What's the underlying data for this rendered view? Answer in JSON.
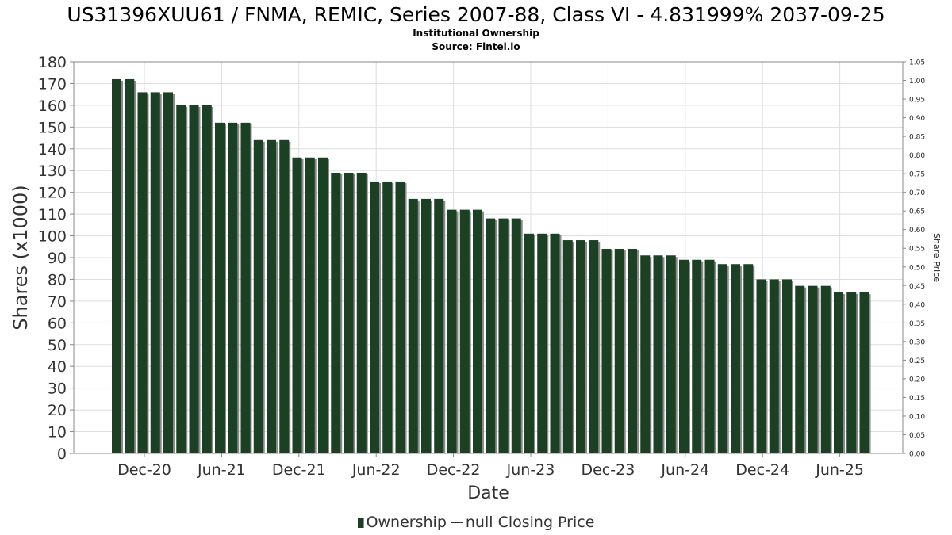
{
  "title": "US31396XUU61 / FNMA, REMIC, Series 2007-88, Class VI - 4.831999% 2037-09-25",
  "subtitle_1": "Institutional Ownership",
  "subtitle_2": "Source: Fintel.io",
  "legend": {
    "ownership": "Ownership",
    "closing_price": "null Closing Price"
  },
  "colors": {
    "bar": "#1c4023",
    "bar_shadow": "#8a8a8a",
    "grid": "#dddddd",
    "frame": "#888888"
  },
  "chart_data": {
    "type": "bar",
    "xlabel": "Date",
    "ylabel": "Shares (x1000)",
    "y2label": "Share Price",
    "ylim": [
      0,
      180
    ],
    "y2lim": [
      0,
      1.05
    ],
    "yticks": [
      "0",
      "10",
      "20",
      "30",
      "40",
      "50",
      "60",
      "70",
      "80",
      "90",
      "100",
      "110",
      "120",
      "130",
      "140",
      "150",
      "160",
      "170",
      "180"
    ],
    "y2ticks": [
      "0.00",
      "0.05",
      "0.10",
      "0.15",
      "0.20",
      "0.25",
      "0.30",
      "0.35",
      "0.40",
      "0.45",
      "0.50",
      "0.55",
      "0.60",
      "0.65",
      "0.70",
      "0.75",
      "0.80",
      "0.85",
      "0.90",
      "0.95",
      "1.00",
      "1.05"
    ],
    "xticks": [
      "Dec-20",
      "Jun-21",
      "Dec-21",
      "Jun-22",
      "Dec-22",
      "Jun-23",
      "Dec-23",
      "Jun-24",
      "Dec-24",
      "Jun-25"
    ],
    "grid": true,
    "legend_position": "bottom",
    "series": [
      {
        "name": "Ownership",
        "values": [
          172,
          172,
          166,
          166,
          166,
          160,
          160,
          160,
          152,
          152,
          152,
          144,
          144,
          144,
          136,
          136,
          136,
          129,
          129,
          129,
          125,
          125,
          125,
          117,
          117,
          117,
          112,
          112,
          112,
          108,
          108,
          108,
          101,
          101,
          101,
          98,
          98,
          98,
          94,
          94,
          94,
          91,
          91,
          91,
          89,
          89,
          89,
          87,
          87,
          87,
          80,
          80,
          80,
          77,
          77,
          77,
          74,
          74,
          74
        ]
      }
    ]
  }
}
